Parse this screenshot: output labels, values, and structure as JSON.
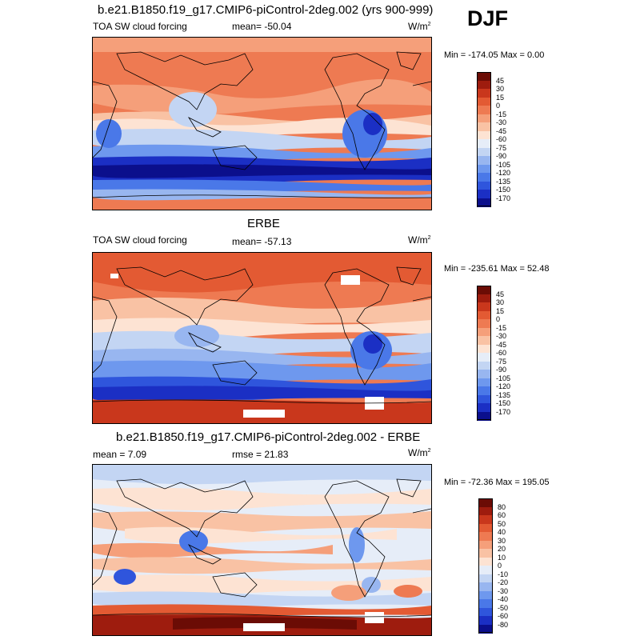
{
  "season": "DJF",
  "palettes": {
    "main": [
      "#0b0f8c",
      "#1b2fc4",
      "#2f55dc",
      "#4a78e8",
      "#6e98ee",
      "#98b6f0",
      "#c3d5f3",
      "#e6edf8",
      "#fde3d3",
      "#f9c2a4",
      "#f59f7a",
      "#ee7a52",
      "#e35a33",
      "#c9371c",
      "#9e1c0e",
      "#6b0c05"
    ],
    "diff": [
      "#0b0f8c",
      "#1b2fc4",
      "#2f55dc",
      "#4a78e8",
      "#6e98ee",
      "#98b6f0",
      "#c3d5f3",
      "#e6edf8",
      "#fde3d3",
      "#f9c2a4",
      "#f59f7a",
      "#ee7a52",
      "#e35a33",
      "#c9371c",
      "#9e1c0e",
      "#6b0c05"
    ]
  },
  "panels": [
    {
      "title": "b.e21.B1850.f19_g17.CMIP6-piControl-2deg.002 (yrs 900-999)",
      "left_label": "TOA SW cloud forcing",
      "stat_label": "mean= -50.04",
      "units_base": "W/m",
      "units_sup": "2",
      "minmax": "Min = -174.05 Max =   0.00",
      "colorbar_labels": [
        "45",
        "30",
        "15",
        "0",
        "-15",
        "-30",
        "-45",
        "-60",
        "-75",
        "-90",
        "-105",
        "-120",
        "-135",
        "-150",
        "-170"
      ]
    },
    {
      "title": "ERBE",
      "left_label": "TOA SW cloud forcing",
      "stat_label": "mean= -57.13",
      "units_base": "W/m",
      "units_sup": "2",
      "minmax": "Min = -235.61 Max =  52.48",
      "colorbar_labels": [
        "45",
        "30",
        "15",
        "0",
        "-15",
        "-30",
        "-45",
        "-60",
        "-75",
        "-90",
        "-105",
        "-120",
        "-135",
        "-150",
        "-170"
      ]
    },
    {
      "title": "b.e21.B1850.f19_g17.CMIP6-piControl-2deg.002 - ERBE",
      "left_label": "mean =  7.09",
      "stat_label": "rmse =  21.83",
      "units_base": "W/m",
      "units_sup": "2",
      "minmax": "Min = -72.36 Max = 195.05",
      "colorbar_labels": [
        "80",
        "60",
        "50",
        "40",
        "30",
        "20",
        "10",
        "0",
        "-10",
        "-20",
        "-30",
        "-40",
        "-50",
        "-60",
        "-80"
      ]
    }
  ]
}
